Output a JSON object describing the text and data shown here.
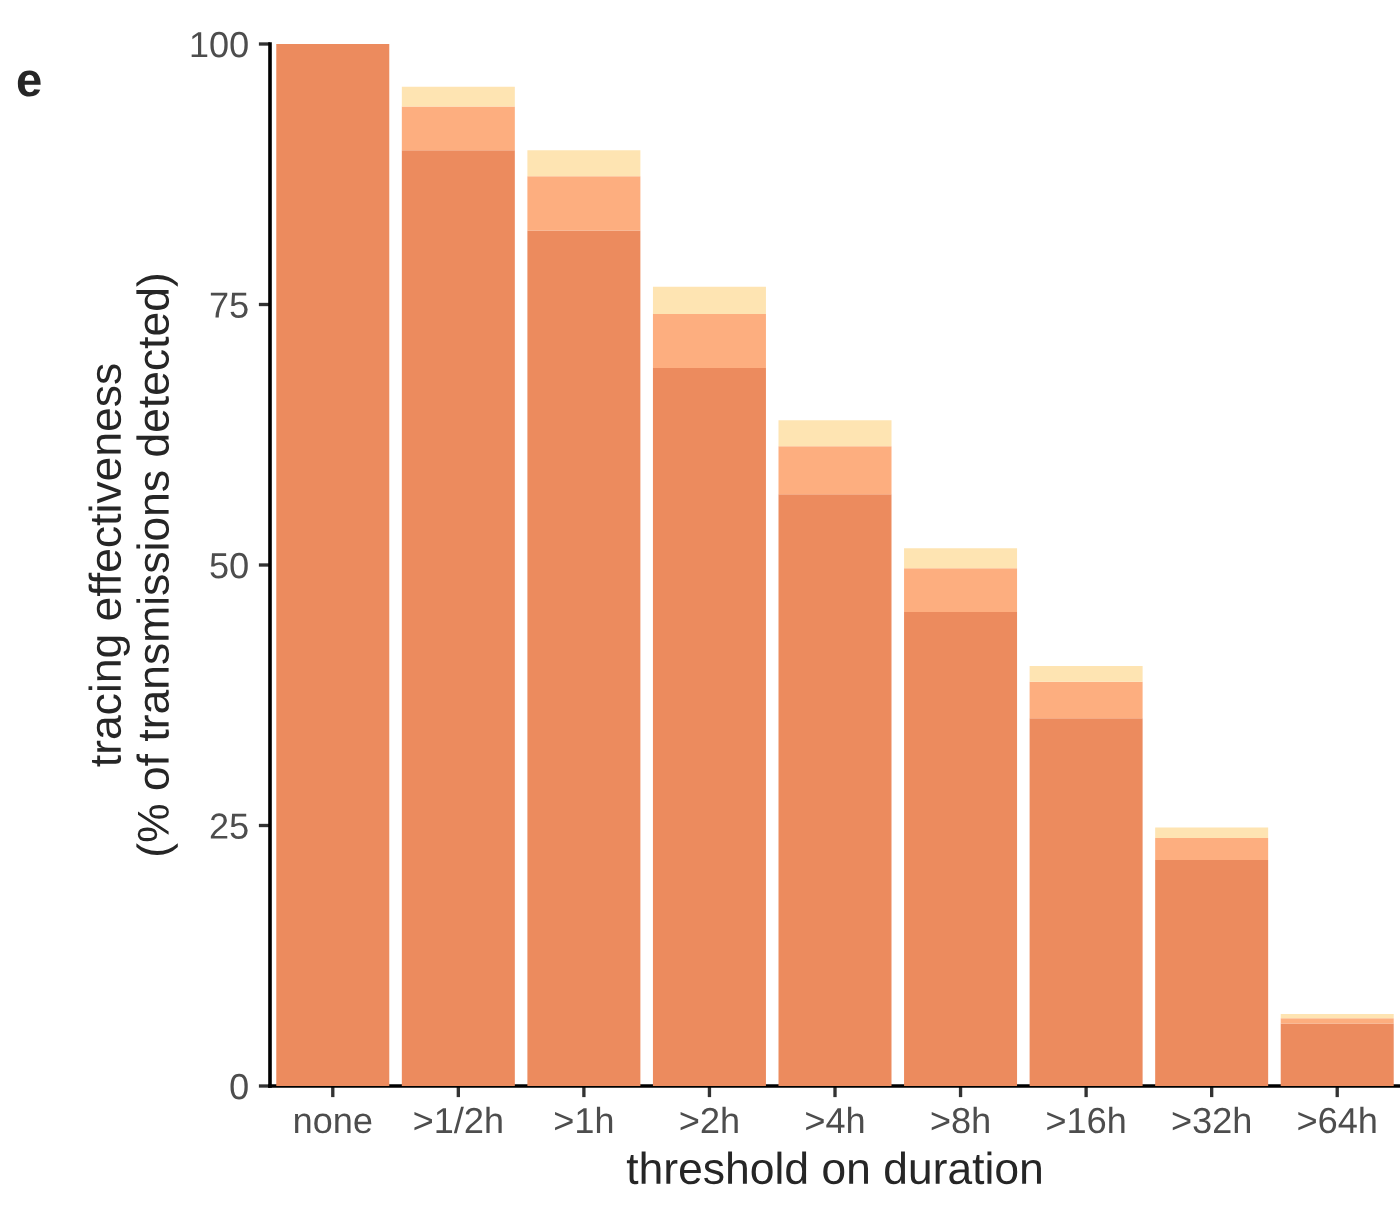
{
  "chart_data": {
    "type": "bar",
    "xlabel": "threshold on duration",
    "ylabel": "tracing effectiveness\n(% of transmissions detected)",
    "categories": [
      "none",
      ">1/2h",
      ">1h",
      ">2h",
      ">4h",
      ">8h",
      ">16h",
      ">32h",
      ">64h"
    ],
    "series": [
      {
        "color": "#ec8b5e",
        "values": [
          100,
          89.8,
          82.1,
          68.9,
          56.8,
          45.5,
          35.3,
          21.7,
          6.0
        ]
      },
      {
        "color": "#fdae7f",
        "values": [
          null,
          4.2,
          5.2,
          5.2,
          4.6,
          4.2,
          3.5,
          2.1,
          0.5
        ]
      },
      {
        "color": "#fee4b2",
        "values": [
          null,
          1.9,
          2.5,
          2.6,
          2.5,
          1.9,
          1.5,
          1.0,
          0.4
        ]
      }
    ],
    "stacked": true,
    "ylim": [
      0,
      100
    ],
    "yticks": [
      0,
      25,
      50,
      75,
      100
    ],
    "grid": false,
    "legend": false,
    "annotations": [
      "e"
    ]
  }
}
